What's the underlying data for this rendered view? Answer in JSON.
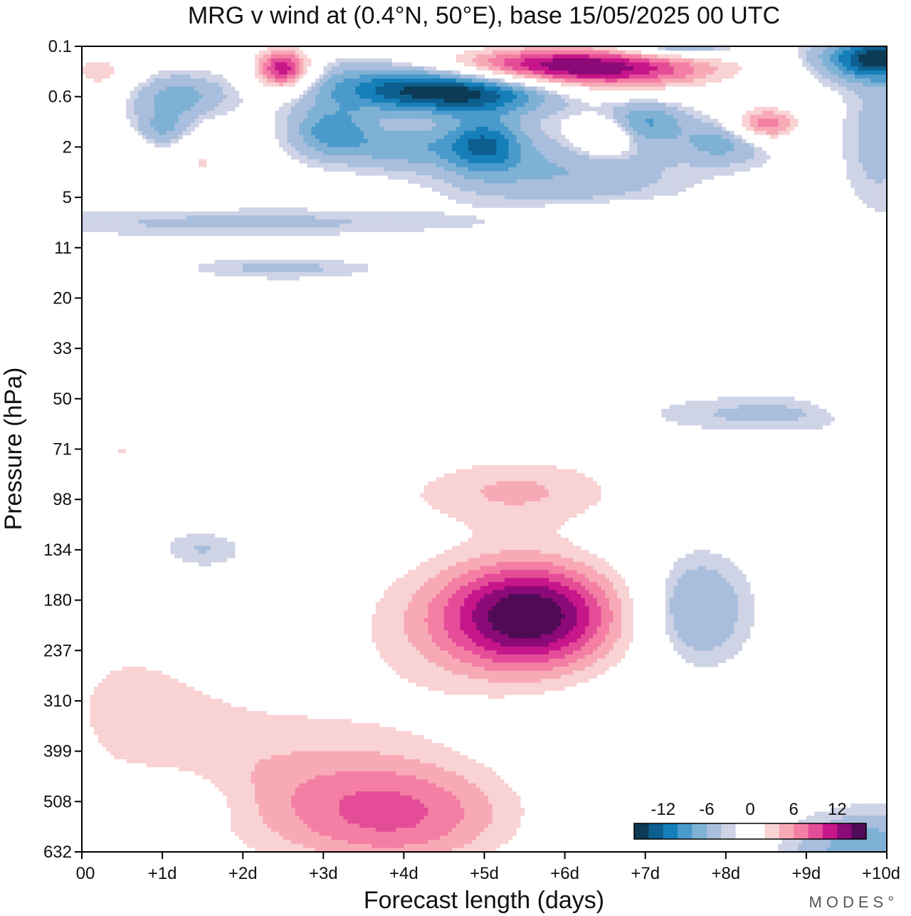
{
  "chart_data": {
    "type": "heatmap",
    "title": "MRG v wind at (0.4°N, 50°E),  base 15/05/2025  00 UTC",
    "xlabel": "Forecast length (days)",
    "ylabel": "Pressure (hPa)",
    "x_ticks": [
      "00",
      "+1d",
      "+2d",
      "+3d",
      "+4d",
      "+5d",
      "+6d",
      "+7d",
      "+8d",
      "+9d",
      "+10d"
    ],
    "y_ticks": [
      "0.1",
      "0.6",
      "2",
      "5",
      "11",
      "20",
      "33",
      "50",
      "71",
      "98",
      "134",
      "180",
      "237",
      "310",
      "399",
      "508",
      "632"
    ],
    "xlim": [
      0,
      10
    ],
    "ylim_levels": [
      0,
      16
    ],
    "colorbar": {
      "labels": [
        "-12",
        "-6",
        "0",
        "6",
        "12"
      ],
      "colors": [
        "#0d3a55",
        "#0d5f8f",
        "#167fb9",
        "#4a9bcb",
        "#7fb1d5",
        "#a8bedc",
        "#cfd3e6",
        "#ffffff",
        "#ffffff",
        "#f9d2d4",
        "#f7aab6",
        "#f47ea4",
        "#e44c98",
        "#c7168a",
        "#8b0a78",
        "#4f0b55"
      ]
    },
    "features": [
      {
        "x": 5.6,
        "y": 11.3,
        "sx": 0.75,
        "sy": 0.75,
        "v": 13
      },
      {
        "x": 5.0,
        "y": 11.4,
        "sx": 1.3,
        "sy": 1.1,
        "v": 6
      },
      {
        "x": 4.0,
        "y": 15.3,
        "sx": 1.1,
        "sy": 0.8,
        "v": 8
      },
      {
        "x": 2.5,
        "y": 14.5,
        "sx": 1.6,
        "sy": 1.3,
        "v": 5
      },
      {
        "x": 0.5,
        "y": 12.7,
        "sx": 1.0,
        "sy": 1.4,
        "v": 3.5
      },
      {
        "x": 5.4,
        "y": 8.8,
        "sx": 1.1,
        "sy": 0.55,
        "v": 6
      },
      {
        "x": 0.5,
        "y": 8.0,
        "sx": 0.8,
        "sy": 0.5,
        "v": 4
      },
      {
        "x": 2.5,
        "y": 9.0,
        "sx": 0.8,
        "sy": 0.35,
        "v": 3
      },
      {
        "x": 9.8,
        "y": 10.4,
        "sx": 0.5,
        "sy": 0.35,
        "v": 3
      },
      {
        "x": 9.8,
        "y": 7.0,
        "sx": 0.4,
        "sy": 0.3,
        "v": 3
      },
      {
        "x": 7.6,
        "y": 11.2,
        "sx": 0.45,
        "sy": 0.75,
        "v": -5
      },
      {
        "x": 1.2,
        "y": 15.0,
        "sx": 0.55,
        "sy": 0.45,
        "v": -3
      },
      {
        "x": 9.8,
        "y": 16.0,
        "sx": 0.6,
        "sy": 0.5,
        "v": -6
      },
      {
        "x": 8.5,
        "y": 7.3,
        "sx": 1.0,
        "sy": 0.25,
        "v": -2.5
      },
      {
        "x": 1.5,
        "y": 10.0,
        "sx": 0.4,
        "sy": 0.3,
        "v": -2.5
      },
      {
        "x": 2.5,
        "y": 0.45,
        "sx": 0.25,
        "sy": 0.3,
        "v": 14
      },
      {
        "x": 6.5,
        "y": 0.45,
        "sx": 1.1,
        "sy": 0.3,
        "v": 13
      },
      {
        "x": 5.5,
        "y": 0.35,
        "sx": 0.9,
        "sy": 0.25,
        "v": 6
      },
      {
        "x": 8.5,
        "y": 1.55,
        "sx": 0.3,
        "sy": 0.25,
        "v": 10
      },
      {
        "x": 6.5,
        "y": 1.8,
        "sx": 0.25,
        "sy": 0.25,
        "v": 6
      },
      {
        "x": 0.2,
        "y": 0.5,
        "sx": 0.3,
        "sy": 0.3,
        "v": 5
      },
      {
        "x": 1.5,
        "y": 2.3,
        "sx": 0.3,
        "sy": 0.4,
        "v": 4
      },
      {
        "x": 0.3,
        "y": 2.1,
        "sx": 0.5,
        "sy": 0.3,
        "v": 4
      },
      {
        "x": 4.8,
        "y": 0.9,
        "sx": 0.8,
        "sy": 0.3,
        "v": -12
      },
      {
        "x": 3.7,
        "y": 0.8,
        "sx": 0.8,
        "sy": 0.35,
        "v": -6
      },
      {
        "x": 9.9,
        "y": 0.25,
        "sx": 0.5,
        "sy": 0.3,
        "v": -13
      },
      {
        "x": 7.4,
        "y": 0.0,
        "sx": 0.5,
        "sy": 0.15,
        "v": -7
      },
      {
        "x": 5.0,
        "y": 1.95,
        "sx": 0.35,
        "sy": 0.4,
        "v": -9
      },
      {
        "x": 3.1,
        "y": 1.7,
        "sx": 0.35,
        "sy": 0.35,
        "v": -7
      },
      {
        "x": 4.0,
        "y": 2.0,
        "sx": 0.5,
        "sy": 0.3,
        "v": -5
      },
      {
        "x": 1.2,
        "y": 1.0,
        "sx": 0.4,
        "sy": 0.3,
        "v": -5
      },
      {
        "x": 1.0,
        "y": 1.7,
        "sx": 0.25,
        "sy": 0.3,
        "v": -5
      },
      {
        "x": 7.0,
        "y": 1.5,
        "sx": 0.35,
        "sy": 0.3,
        "v": -6
      },
      {
        "x": 6.0,
        "y": 2.5,
        "sx": 1.0,
        "sy": 0.5,
        "v": -4
      },
      {
        "x": 8.0,
        "y": 1.9,
        "sx": 0.4,
        "sy": 0.3,
        "v": -5
      },
      {
        "x": 9.9,
        "y": 1.8,
        "sx": 0.3,
        "sy": 1.0,
        "v": -3
      },
      {
        "x": 2.0,
        "y": 3.5,
        "sx": 2.0,
        "sy": 0.2,
        "v": -2.5
      },
      {
        "x": 7.0,
        "y": 3.3,
        "sx": 1.0,
        "sy": 0.15,
        "v": 2.5
      },
      {
        "x": 5.5,
        "y": 4.0,
        "sx": 1.5,
        "sy": 0.15,
        "v": 2.5
      },
      {
        "x": 8.5,
        "y": 4.0,
        "sx": 1.0,
        "sy": 0.15,
        "v": 2.5
      },
      {
        "x": 2.5,
        "y": 4.4,
        "sx": 0.8,
        "sy": 0.15,
        "v": -2.5
      },
      {
        "x": 4.5,
        "y": 5.2,
        "sx": 0.6,
        "sy": 0.15,
        "v": 2.5
      },
      {
        "x": 2.3,
        "y": 5.7,
        "sx": 0.5,
        "sy": 0.15,
        "v": 2.5
      },
      {
        "x": 5.5,
        "y": 6.4,
        "sx": 1.0,
        "sy": 0.15,
        "v": 2.5
      },
      {
        "x": 0.5,
        "y": 6.2,
        "sx": 0.5,
        "sy": 0.25,
        "v": 2.5
      }
    ]
  },
  "brand": "MODES°"
}
